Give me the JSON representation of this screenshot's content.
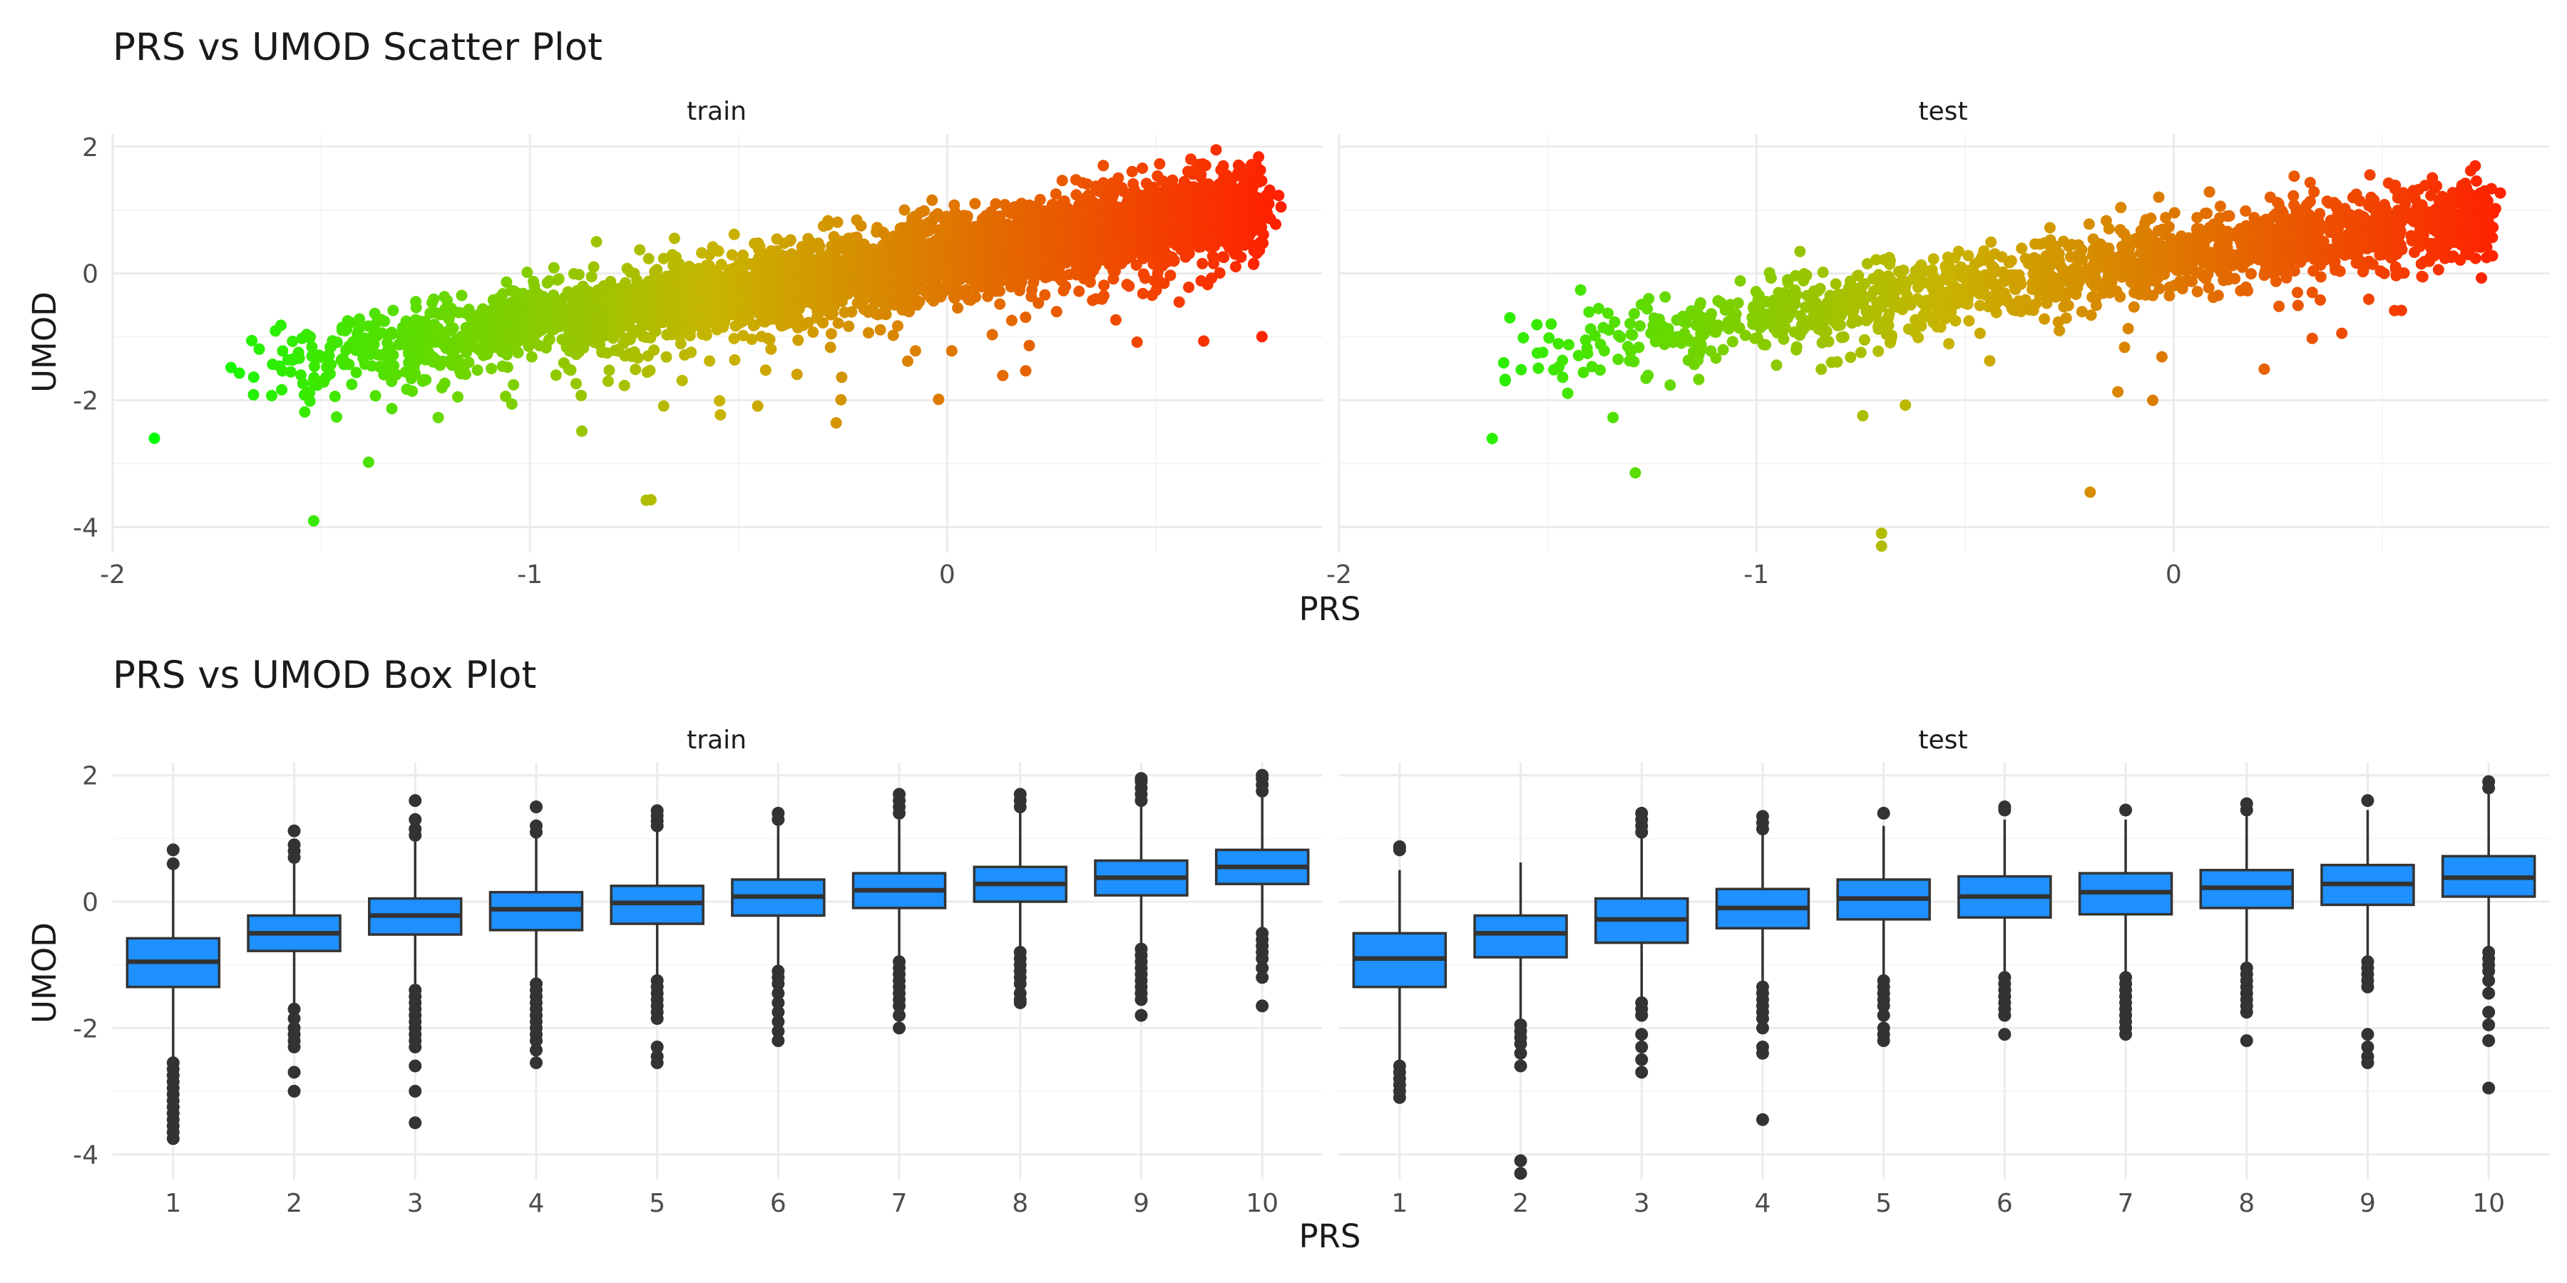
{
  "chart_data": [
    {
      "type": "scatter",
      "title": "PRS vs UMOD Scatter Plot",
      "xlabel": "PRS",
      "ylabel": "UMOD",
      "facets": [
        "train",
        "test"
      ],
      "xlim": [
        -2.0,
        0.9
      ],
      "ylim": [
        -4.4,
        2.2
      ],
      "x_ticks": [
        "-2",
        "-1",
        "0"
      ],
      "x_tick_values": [
        -2,
        -1,
        0
      ],
      "y_ticks": [
        "2",
        "0",
        "-2",
        "-4"
      ],
      "y_tick_values": [
        2,
        0,
        -2,
        -4
      ],
      "grid": true,
      "color_by": "PRS",
      "color_scale": {
        "low": "#00ff00",
        "mid": "#c8b400",
        "high": "#ff2000"
      },
      "trend": {
        "train": {
          "intercept": 0.26,
          "slope": 1.05,
          "x_range": [
            -1.7,
            0.75
          ],
          "n_points": 4200,
          "outliers": [
            [
              -1.9,
              -2.6
            ],
            [
              0.8,
              1.05
            ],
            [
              0.73,
              1.3
            ]
          ]
        },
        "test": {
          "intercept": 0.25,
          "slope": 0.95,
          "x_range": [
            -1.65,
            0.75
          ],
          "n_points": 1600,
          "outliers": [
            [
              -0.7,
              -4.1
            ],
            [
              -0.7,
              -4.3
            ],
            [
              -0.2,
              -3.45
            ],
            [
              0.75,
              0.25
            ]
          ]
        }
      }
    },
    {
      "type": "box",
      "title": "PRS vs UMOD Box Plot",
      "xlabel": "PRS",
      "ylabel": "UMOD",
      "facets": [
        "train",
        "test"
      ],
      "categories": [
        "1",
        "2",
        "3",
        "4",
        "5",
        "6",
        "7",
        "8",
        "9",
        "10"
      ],
      "ylim": [
        -4.4,
        2.2
      ],
      "y_ticks": [
        "2",
        "0",
        "-2",
        "-4"
      ],
      "y_tick_values": [
        2,
        0,
        -2,
        -4
      ],
      "grid": true,
      "box_color": "#1e90ff",
      "series": [
        {
          "facet": "train",
          "boxes": [
            {
              "q1": -1.35,
              "median": -0.95,
              "q3": -0.58,
              "whisker_low": -2.48,
              "whisker_high": 0.5,
              "outliers_low": [
                -2.55,
                -2.65,
                -2.75,
                -2.85,
                -2.95,
                -3.05,
                -3.15,
                -3.25,
                -3.35,
                -3.45,
                -3.55,
                -3.65,
                -3.75
              ],
              "outliers_high": [
                0.6,
                0.82
              ]
            },
            {
              "q1": -0.78,
              "median": -0.5,
              "q3": -0.22,
              "whisker_low": -1.6,
              "whisker_high": 0.6,
              "outliers_low": [
                -1.7,
                -1.85,
                -2.0,
                -2.1,
                -2.2,
                -2.3,
                -2.7,
                -3.0
              ],
              "outliers_high": [
                0.7,
                0.8,
                0.9,
                1.12
              ]
            },
            {
              "q1": -0.52,
              "median": -0.22,
              "q3": 0.05,
              "whisker_low": -1.3,
              "whisker_high": 0.95,
              "outliers_low": [
                -1.4,
                -1.5,
                -1.6,
                -1.7,
                -1.8,
                -1.9,
                -2.0,
                -2.1,
                -2.2,
                -2.3,
                -2.6,
                -3.0,
                -3.5
              ],
              "outliers_high": [
                1.05,
                1.15,
                1.3,
                1.6
              ]
            },
            {
              "q1": -0.45,
              "median": -0.12,
              "q3": 0.15,
              "whisker_low": -1.2,
              "whisker_high": 1.0,
              "outliers_low": [
                -1.3,
                -1.4,
                -1.5,
                -1.6,
                -1.7,
                -1.8,
                -1.9,
                -2.0,
                -2.1,
                -2.2,
                -2.35,
                -2.55
              ],
              "outliers_high": [
                1.1,
                1.2,
                1.5
              ]
            },
            {
              "q1": -0.35,
              "median": -0.02,
              "q3": 0.25,
              "whisker_low": -1.15,
              "whisker_high": 1.1,
              "outliers_low": [
                -1.25,
                -1.35,
                -1.45,
                -1.55,
                -1.65,
                -1.75,
                -1.85,
                -2.3,
                -2.45,
                -2.55
              ],
              "outliers_high": [
                1.2,
                1.28,
                1.36,
                1.44
              ]
            },
            {
              "q1": -0.22,
              "median": 0.08,
              "q3": 0.35,
              "whisker_low": -1.0,
              "whisker_high": 1.2,
              "outliers_low": [
                -1.1,
                -1.2,
                -1.3,
                -1.45,
                -1.6,
                -1.75,
                -1.9,
                -2.05,
                -2.2
              ],
              "outliers_high": [
                1.3,
                1.4
              ]
            },
            {
              "q1": -0.1,
              "median": 0.18,
              "q3": 0.45,
              "whisker_low": -0.9,
              "whisker_high": 1.3,
              "outliers_low": [
                -0.95,
                -1.05,
                -1.15,
                -1.25,
                -1.35,
                -1.45,
                -1.55,
                -1.65,
                -1.8,
                -2.0
              ],
              "outliers_high": [
                1.4,
                1.5,
                1.6,
                1.7
              ]
            },
            {
              "q1": 0.0,
              "median": 0.28,
              "q3": 0.55,
              "whisker_low": -0.75,
              "whisker_high": 1.4,
              "outliers_low": [
                -0.8,
                -0.9,
                -1.0,
                -1.1,
                -1.2,
                -1.3,
                -1.45,
                -1.55,
                -1.6
              ],
              "outliers_high": [
                1.5,
                1.6,
                1.7
              ]
            },
            {
              "q1": 0.1,
              "median": 0.38,
              "q3": 0.65,
              "whisker_low": -0.7,
              "whisker_high": 1.5,
              "outliers_low": [
                -0.75,
                -0.85,
                -0.95,
                -1.05,
                -1.15,
                -1.25,
                -1.35,
                -1.45,
                -1.55,
                -1.8
              ],
              "outliers_high": [
                1.6,
                1.7,
                1.8,
                1.9,
                1.95
              ]
            },
            {
              "q1": 0.28,
              "median": 0.55,
              "q3": 0.82,
              "whisker_low": -0.45,
              "whisker_high": 1.65,
              "outliers_low": [
                -0.5,
                -0.6,
                -0.7,
                -0.8,
                -0.9,
                -1.05,
                -1.2,
                -1.65
              ],
              "outliers_high": [
                1.75,
                1.85,
                1.95,
                2.0
              ]
            }
          ]
        },
        {
          "facet": "test",
          "boxes": [
            {
              "q1": -1.35,
              "median": -0.9,
              "q3": -0.5,
              "whisker_low": -2.5,
              "whisker_high": 0.5,
              "outliers_low": [
                -2.6,
                -2.7,
                -2.8,
                -2.9,
                -3.0,
                -3.1
              ],
              "outliers_high": [
                0.82,
                0.87
              ]
            },
            {
              "q1": -0.88,
              "median": -0.5,
              "q3": -0.22,
              "whisker_low": -1.85,
              "whisker_high": 0.62,
              "outliers_low": [
                -1.95,
                -2.05,
                -2.15,
                -2.25,
                -2.4,
                -2.6,
                -4.1,
                -4.3
              ],
              "outliers_high": []
            },
            {
              "q1": -0.65,
              "median": -0.28,
              "q3": 0.05,
              "whisker_low": -1.55,
              "whisker_high": 1.0,
              "outliers_low": [
                -1.6,
                -1.7,
                -1.8,
                -2.1,
                -2.3,
                -2.5,
                -2.7
              ],
              "outliers_high": [
                1.1,
                1.2,
                1.3,
                1.4
              ]
            },
            {
              "q1": -0.42,
              "median": -0.1,
              "q3": 0.2,
              "whisker_low": -1.25,
              "whisker_high": 1.05,
              "outliers_low": [
                -1.35,
                -1.45,
                -1.55,
                -1.65,
                -1.75,
                -1.85,
                -2.0,
                -2.3,
                -2.4,
                -3.45
              ],
              "outliers_high": [
                1.15,
                1.25,
                1.35
              ]
            },
            {
              "q1": -0.28,
              "median": 0.05,
              "q3": 0.35,
              "whisker_low": -1.15,
              "whisker_high": 1.2,
              "outliers_low": [
                -1.25,
                -1.35,
                -1.45,
                -1.55,
                -1.65,
                -1.8,
                -2.0,
                -2.1,
                -2.2
              ],
              "outliers_high": [
                1.4
              ]
            },
            {
              "q1": -0.25,
              "median": 0.08,
              "q3": 0.4,
              "whisker_low": -1.1,
              "whisker_high": 1.3,
              "outliers_low": [
                -1.2,
                -1.3,
                -1.4,
                -1.5,
                -1.6,
                -1.7,
                -1.8,
                -2.1
              ],
              "outliers_high": [
                1.45,
                1.5
              ]
            },
            {
              "q1": -0.2,
              "median": 0.15,
              "q3": 0.45,
              "whisker_low": -1.1,
              "whisker_high": 1.3,
              "outliers_low": [
                -1.2,
                -1.3,
                -1.4,
                -1.5,
                -1.6,
                -1.7,
                -1.8,
                -1.9,
                -2.0,
                -2.1
              ],
              "outliers_high": [
                1.45
              ]
            },
            {
              "q1": -0.1,
              "median": 0.22,
              "q3": 0.5,
              "whisker_low": -0.95,
              "whisker_high": 1.35,
              "outliers_low": [
                -1.05,
                -1.15,
                -1.25,
                -1.35,
                -1.45,
                -1.55,
                -1.65,
                -1.75,
                -2.2
              ],
              "outliers_high": [
                1.45,
                1.55
              ]
            },
            {
              "q1": -0.05,
              "median": 0.28,
              "q3": 0.58,
              "whisker_low": -0.9,
              "whisker_high": 1.45,
              "outliers_low": [
                -0.95,
                -1.05,
                -1.15,
                -1.25,
                -1.35,
                -2.1,
                -2.3,
                -2.45,
                -2.55
              ],
              "outliers_high": [
                1.6
              ]
            },
            {
              "q1": 0.08,
              "median": 0.38,
              "q3": 0.72,
              "whisker_low": -0.7,
              "whisker_high": 1.7,
              "outliers_low": [
                -0.8,
                -0.9,
                -1.0,
                -1.1,
                -1.25,
                -1.45,
                -1.75,
                -1.95,
                -2.2,
                -2.95
              ],
              "outliers_high": [
                1.8,
                1.9
              ]
            }
          ]
        }
      ]
    }
  ]
}
